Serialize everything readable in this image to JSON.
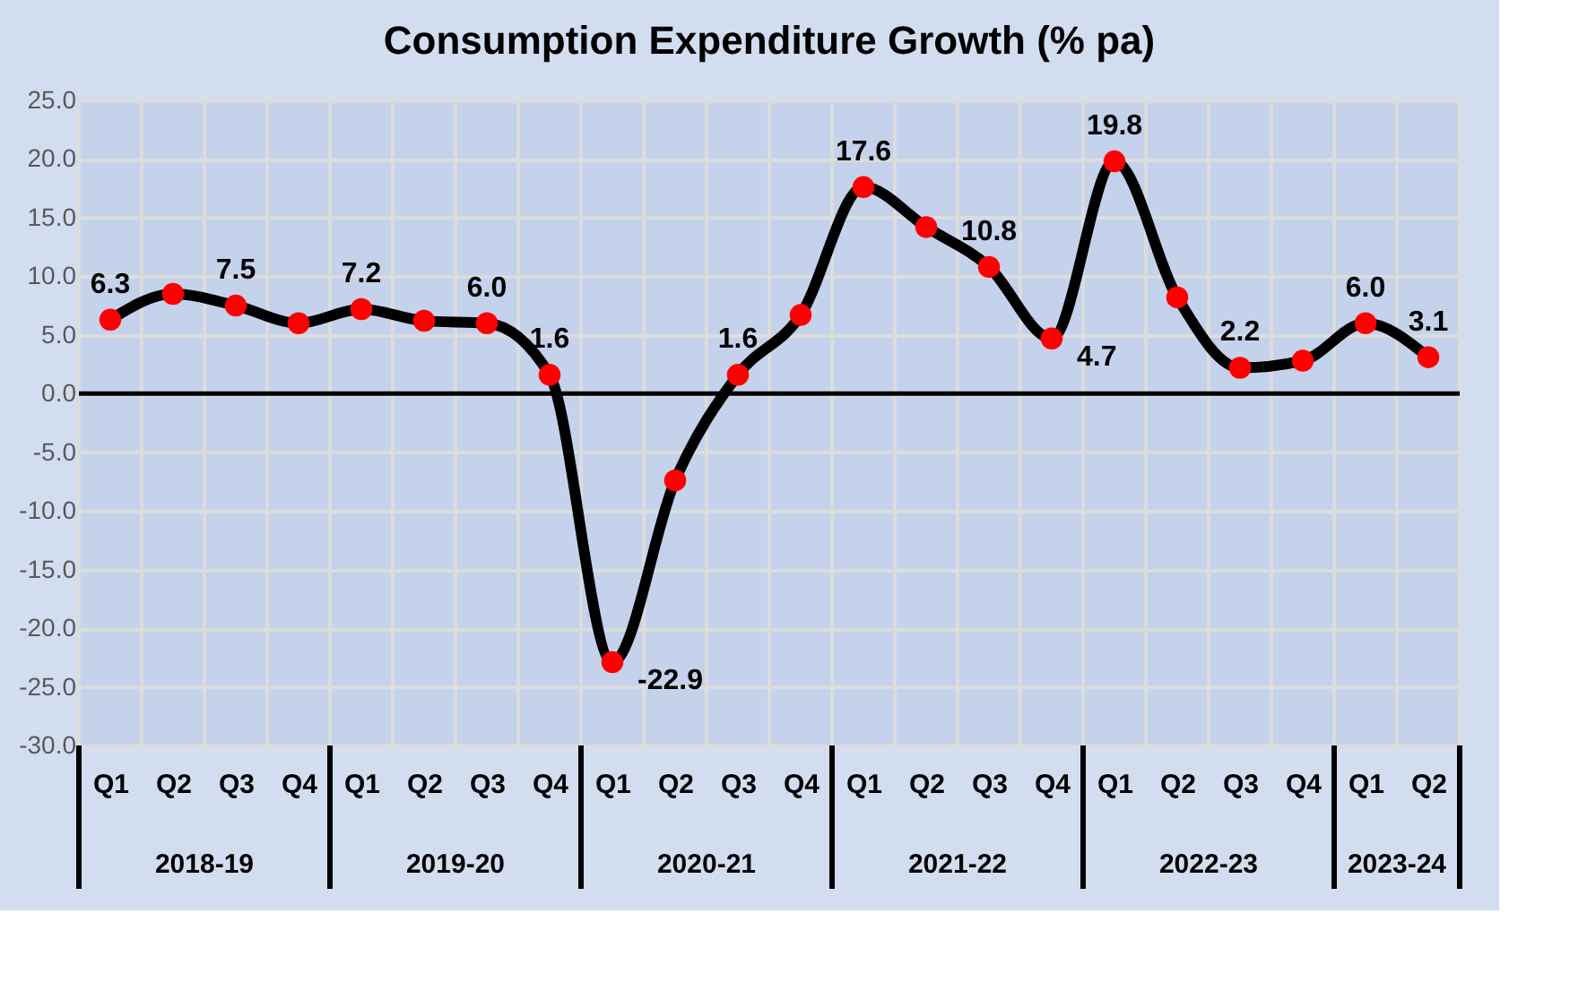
{
  "chart_data": {
    "type": "line",
    "title": "Consumption Expenditure Growth (% pa)",
    "categories": [
      "Q1",
      "Q2",
      "Q3",
      "Q4",
      "Q1",
      "Q2",
      "Q3",
      "Q4",
      "Q1",
      "Q2",
      "Q3",
      "Q4",
      "Q1",
      "Q2",
      "Q3",
      "Q4",
      "Q1",
      "Q2",
      "Q3",
      "Q4",
      "Q1",
      "Q2"
    ],
    "series": [
      {
        "color": "#000000",
        "colors": [
          "#ff0000",
          "#ff0000",
          "#ff0000",
          "#ff0000",
          "#ff0000",
          "#ff0000",
          "#ff0000",
          "#ff0000",
          "#ff0000",
          "#ff0000",
          "#ff0000",
          "#ff0000",
          "#ff0000",
          "#ff0000",
          "#ff0000",
          "#ff0000",
          "#ff0000",
          "#ff0000",
          "#ff0000",
          "#ff0000",
          "#ff0000",
          "#ff0000"
        ],
        "values": [
          6.3,
          8.5,
          7.5,
          6.0,
          7.2,
          6.2,
          6.0,
          1.6,
          -22.9,
          -7.4,
          1.6,
          6.7,
          17.6,
          14.2,
          10.8,
          4.7,
          19.8,
          8.2,
          2.2,
          2.8,
          6.0,
          3.1
        ],
        "value_labels": [
          "6.3",
          null,
          "7.5",
          null,
          "7.2",
          null,
          "6.0",
          "1.6",
          "-22.9",
          null,
          "1.6",
          null,
          "17.6",
          null,
          "10.8",
          "4.7",
          "19.8",
          null,
          "2.2",
          null,
          "6.0",
          "3.1"
        ]
      }
    ],
    "annotations": [
      "2018-19",
      "2019-20",
      "2020-21",
      "2021-22",
      "2022-23",
      "2023-24"
    ],
    "ylim": [
      -30,
      25
    ],
    "yticks": [
      {
        "value": -30,
        "label": "-30.0"
      },
      {
        "value": -25,
        "label": "-25.0"
      },
      {
        "value": -20,
        "label": "-20.0"
      },
      {
        "value": -15,
        "label": "-15.0"
      },
      {
        "value": -10,
        "label": "-10.0"
      },
      {
        "value": -5,
        "label": "-5.0"
      },
      {
        "value": 0,
        "label": "0.0"
      },
      {
        "value": 5,
        "label": "5.0"
      },
      {
        "value": 10,
        "label": "10.0"
      },
      {
        "value": 15,
        "label": "15.0"
      },
      {
        "value": 20,
        "label": "20.0"
      },
      {
        "value": 25,
        "label": "25.0"
      }
    ],
    "ref_lines": [
      {
        "axis": "y",
        "value": 0,
        "color": "#000000"
      }
    ],
    "grid": true,
    "marker": "circle",
    "line_style": "solid"
  }
}
